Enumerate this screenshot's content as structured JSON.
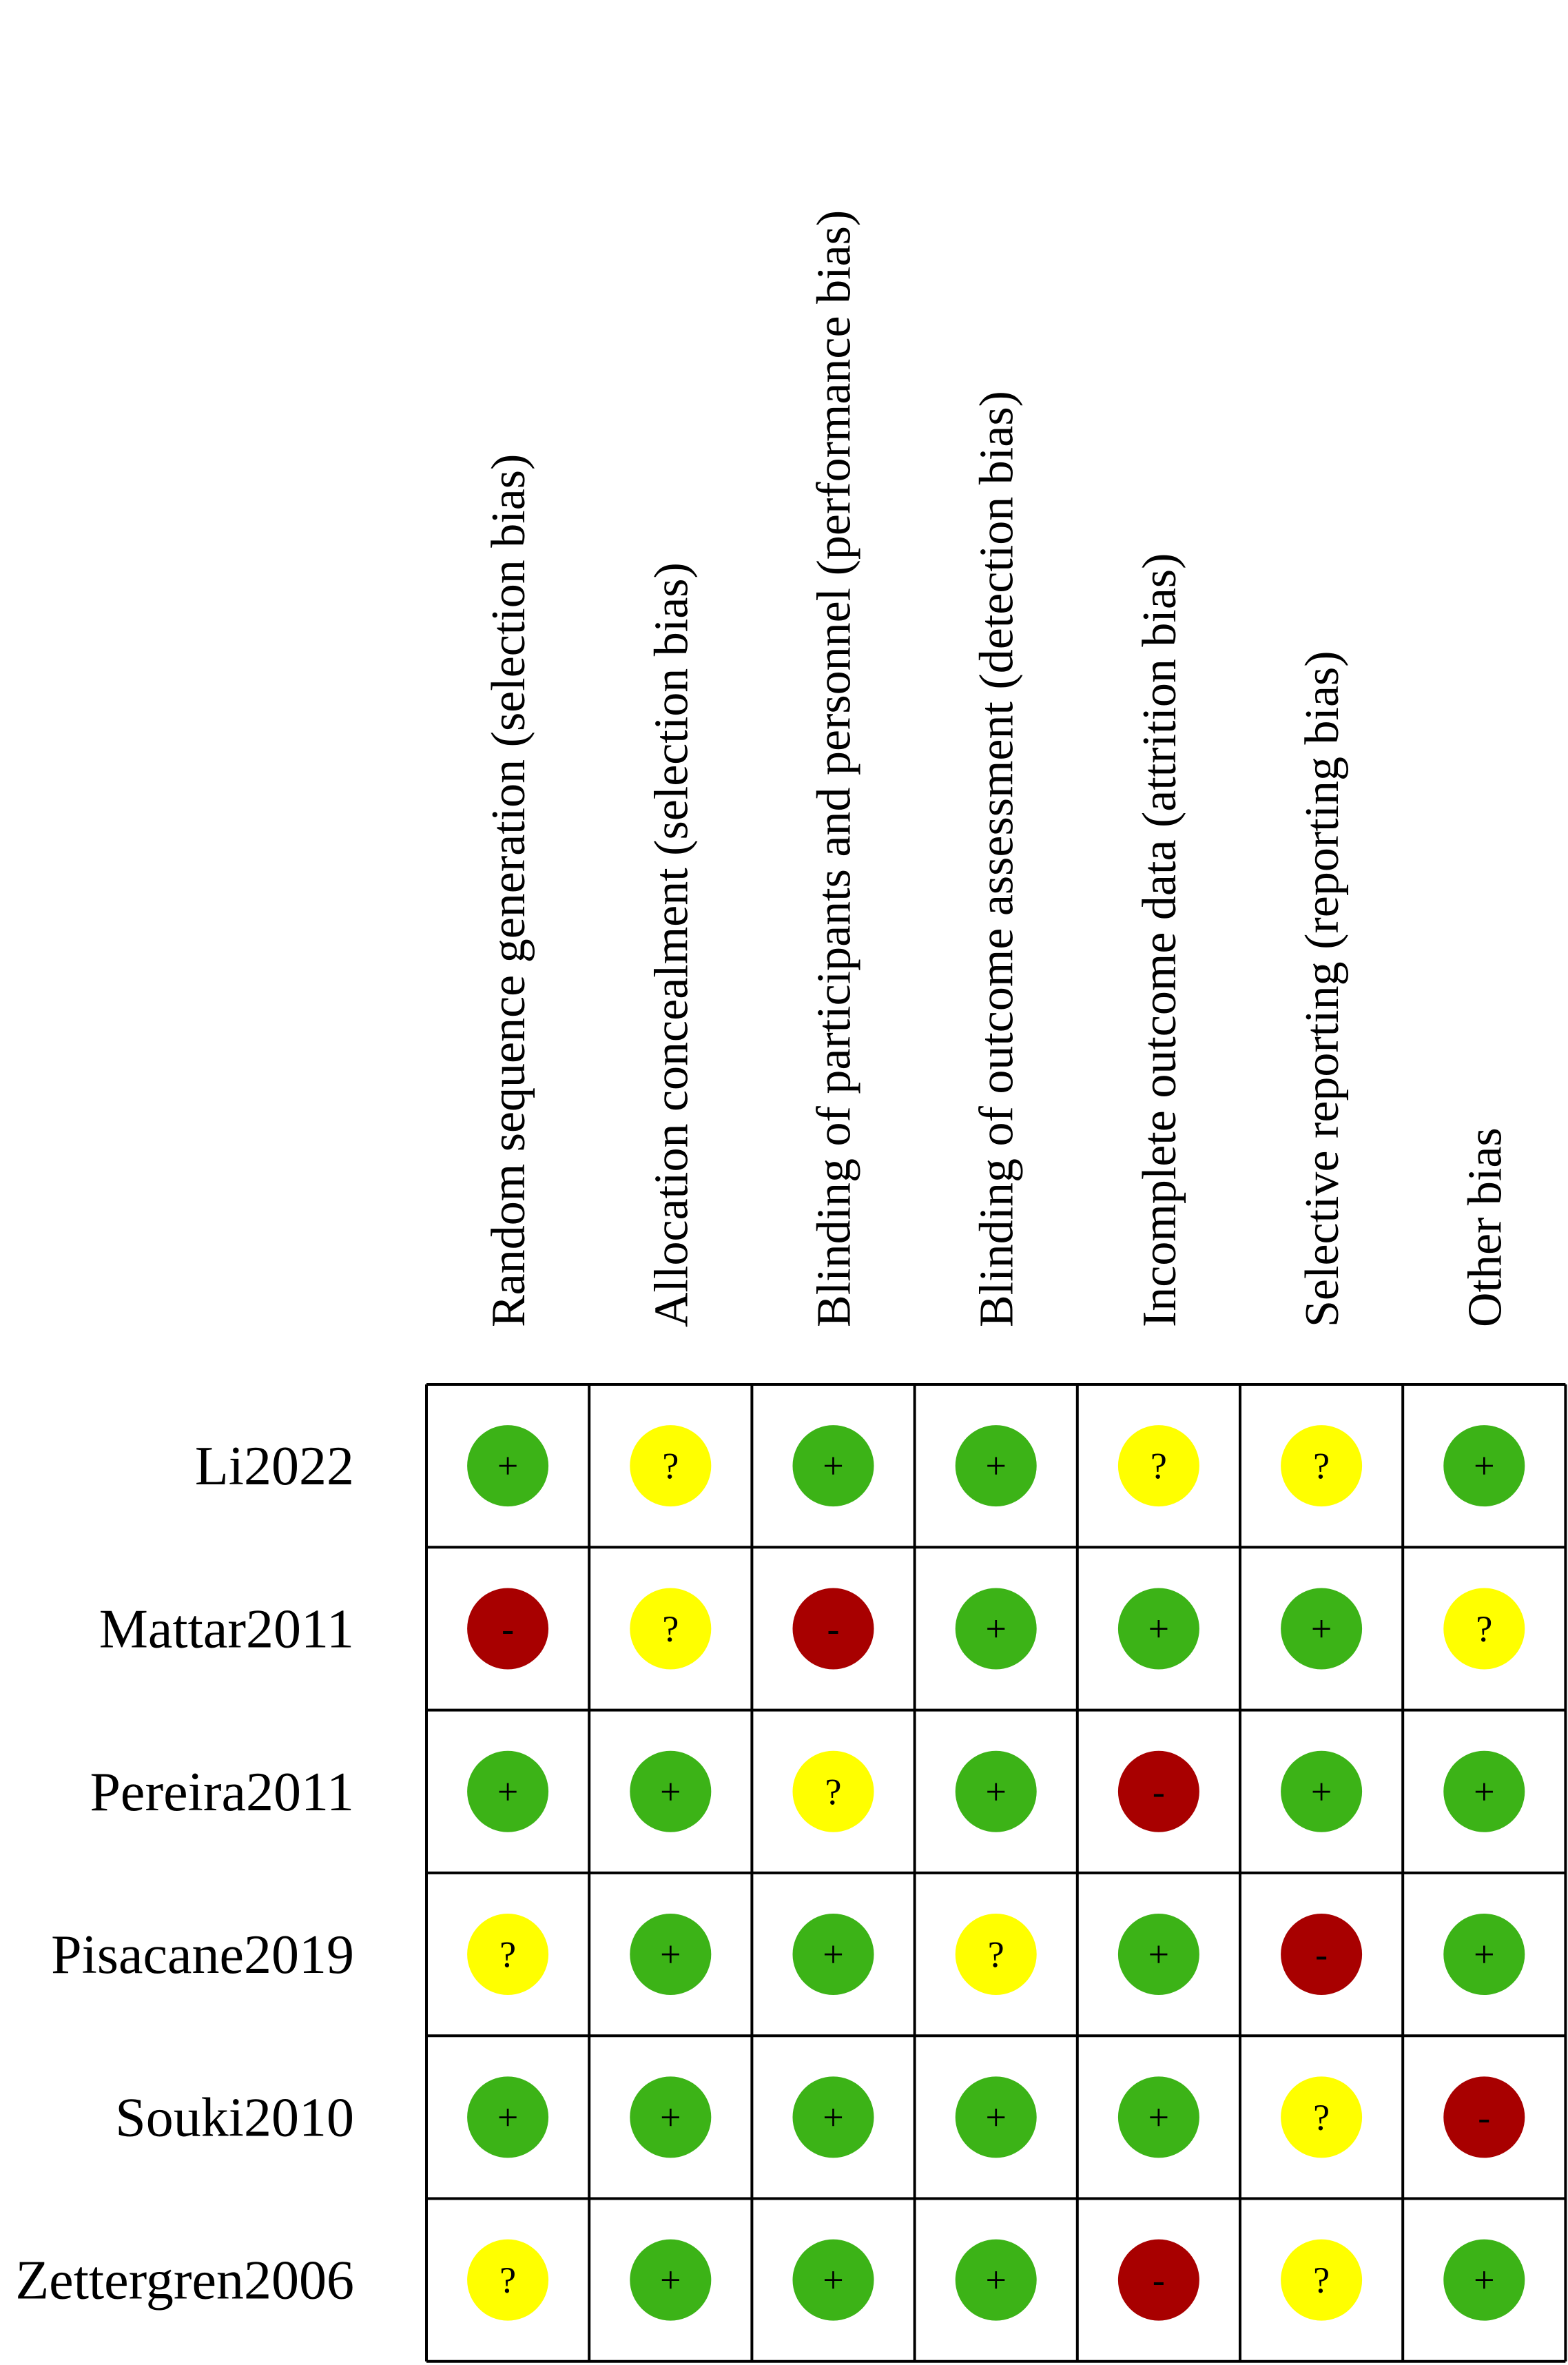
{
  "columns": [
    "Random sequence generation (selection bias)",
    "Allocation concealment (selection bias)",
    "Blinding of participants and personnel (performance bias)",
    "Blinding of outcome assessment (detection bias)",
    "Incomplete outcome data (attrition bias)",
    "Selective reporting (reporting bias)",
    "Other bias"
  ],
  "rows": [
    {
      "study": "Li2022",
      "judgements": [
        "+",
        "?",
        "+",
        "+",
        "?",
        "?",
        "+"
      ]
    },
    {
      "study": "Mattar2011",
      "judgements": [
        "-",
        "?",
        "-",
        "+",
        "+",
        "+",
        "?"
      ]
    },
    {
      "study": "Pereira2011",
      "judgements": [
        "+",
        "+",
        "?",
        "+",
        "-",
        "+",
        "+"
      ]
    },
    {
      "study": "Pisacane2019",
      "judgements": [
        "?",
        "+",
        "+",
        "?",
        "+",
        "-",
        "+"
      ]
    },
    {
      "study": "Souki2010",
      "judgements": [
        "+",
        "+",
        "+",
        "+",
        "+",
        "?",
        "-"
      ]
    },
    {
      "study": "Zettergren2006",
      "judgements": [
        "?",
        "+",
        "+",
        "+",
        "-",
        "?",
        "+"
      ]
    }
  ],
  "judgement_colors": {
    "+": "#3cb317",
    "?": "#ffff00",
    "-": "#a80000"
  }
}
